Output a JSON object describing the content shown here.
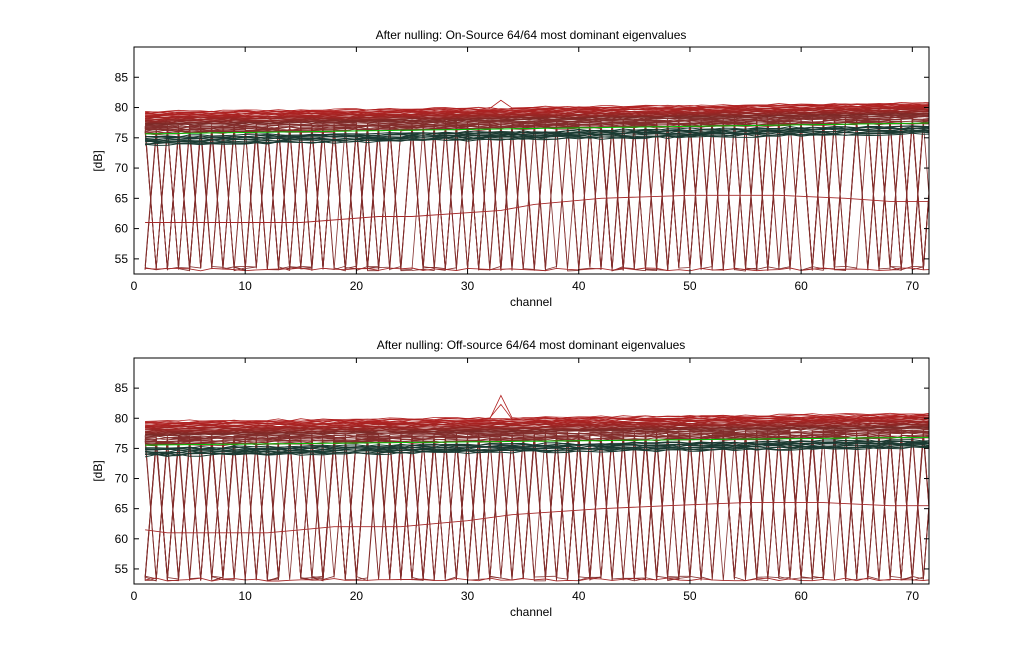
{
  "chart_data": [
    {
      "type": "line",
      "title": "After nulling: On-Source 64/64 most dominant eigenvalues",
      "xlabel": "channel",
      "ylabel": "[dB]",
      "xlim": [
        0,
        71.5
      ],
      "ylim": [
        52.5,
        90
      ],
      "xticks": [
        0,
        10,
        20,
        30,
        40,
        50,
        60,
        70
      ],
      "yticks": [
        55,
        60,
        65,
        70,
        75,
        80,
        85
      ],
      "grid": false,
      "n_series": 64,
      "x": [
        1,
        72
      ],
      "series_top_y": [
        79.3,
        80.8
      ],
      "series_mid_y": [
        75.6,
        77.4
      ],
      "spike": {
        "x": 33,
        "y": 81.2
      },
      "baseline_y": 53.0,
      "step_series": [
        {
          "x": [
            1,
            3,
            8,
            11,
            15,
            22,
            25,
            33,
            36,
            42,
            50,
            58,
            64,
            68,
            72
          ],
          "y": [
            61,
            61,
            61,
            61,
            61,
            62,
            62,
            63,
            64,
            65,
            65.5,
            65.5,
            65,
            64.5,
            64.5
          ]
        }
      ],
      "colors": {
        "top": "#b22222",
        "mid": "#1b3b32",
        "green": "#00c000",
        "drop": "#a52a2a"
      }
    },
    {
      "type": "line",
      "title": "After nulling: Off-source 64/64 most dominant eigenvalues",
      "xlabel": "channel",
      "ylabel": "[dB]",
      "xlim": [
        0,
        71.5
      ],
      "ylim": [
        52.5,
        90
      ],
      "xticks": [
        0,
        10,
        20,
        30,
        40,
        50,
        60,
        70
      ],
      "yticks": [
        55,
        60,
        65,
        70,
        75,
        80,
        85
      ],
      "grid": false,
      "n_series": 64,
      "x": [
        1,
        72
      ],
      "series_top_y": [
        79.5,
        80.8
      ],
      "series_mid_y": [
        75.5,
        76.8
      ],
      "spike": {
        "x": 33,
        "y": 83.8
      },
      "baseline_y": 53.0,
      "step_series": [
        {
          "x": [
            1,
            3,
            8,
            12,
            15,
            18,
            24,
            30,
            34,
            42,
            48,
            55,
            62,
            68,
            72
          ],
          "y": [
            61.5,
            61,
            61,
            61,
            61.5,
            62,
            62,
            63,
            64,
            65,
            65.5,
            66,
            66,
            65.5,
            65.5
          ]
        }
      ],
      "colors": {
        "top": "#b22222",
        "mid": "#1b3b32",
        "green": "#00c000",
        "drop": "#a52a2a"
      }
    }
  ]
}
